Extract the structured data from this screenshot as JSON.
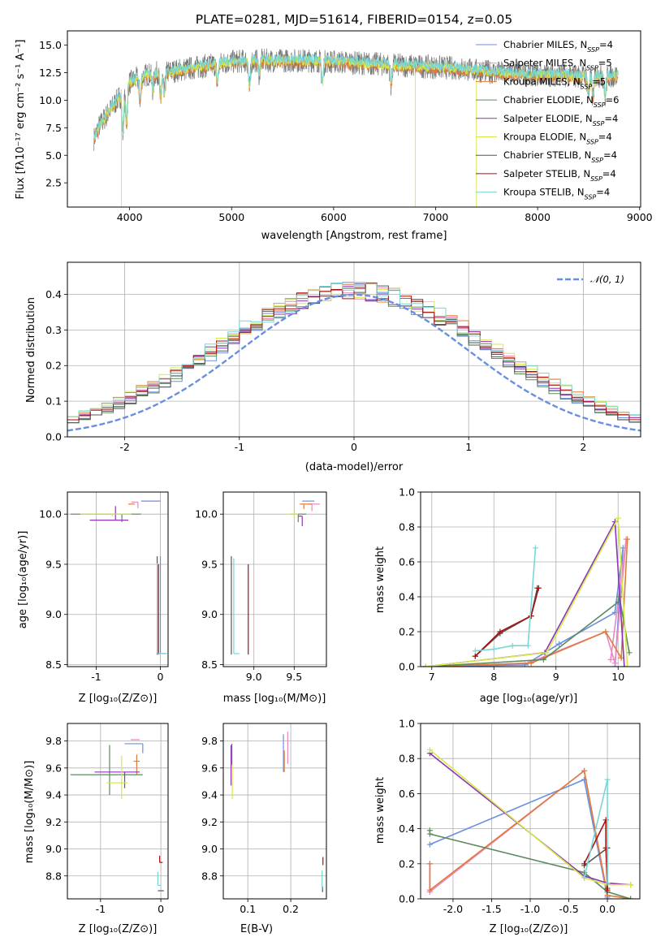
{
  "title": "PLATE=0281, MJD=51614, FIBERID=0154, z=0.05",
  "colors": [
    "#6a8fe0",
    "#e889c0",
    "#e07b39",
    "#5c8a5c",
    "#8e35b5",
    "#d6e84a",
    "#555555",
    "#aa1111",
    "#78d6d6"
  ],
  "legend": {
    "spectrum": [
      {
        "name": "Chabrier MILES",
        "n": "4"
      },
      {
        "name": "Salpeter MILES",
        "n": "5"
      },
      {
        "name": "Kroupa MILES",
        "n": "5"
      },
      {
        "name": "Chabrier ELODIE",
        "n": "6"
      },
      {
        "name": "Salpeter ELODIE",
        "n": "4"
      },
      {
        "name": "Kroupa ELODIE",
        "n": "4"
      },
      {
        "name": "Chabrier STELIB",
        "n": "4"
      },
      {
        "name": "Salpeter STELIB",
        "n": "4"
      },
      {
        "name": "Kroupa STELIB",
        "n": "4"
      }
    ],
    "normal": "𝒩(0, 1)"
  },
  "chart_data": [
    {
      "type": "line",
      "id": "spectrum",
      "xlabel": "wavelength [Angstrom, rest frame]",
      "ylabel": "Flux [fλ10⁻¹⁷ erg cm⁻² s⁻¹ A⁻¹]",
      "xlim": [
        3390,
        9010
      ],
      "ylim": [
        0.3,
        16.3
      ],
      "xticks": [
        4000,
        5000,
        6000,
        7000,
        8000,
        9000
      ],
      "yticks": [
        2.5,
        5.0,
        7.5,
        10.0,
        12.5,
        15.0
      ],
      "continuum": {
        "x": [
          3650,
          3700,
          3800,
          3900,
          3950,
          4000,
          4100,
          4200,
          4300,
          4400,
          4600,
          4800,
          5000,
          5200,
          5400,
          5600,
          5800,
          6000,
          6200,
          6400,
          6600,
          6800,
          7000,
          7200,
          7400,
          7600,
          7800,
          8000,
          8200,
          8400,
          8600,
          8800
        ],
        "y": [
          6.5,
          7.6,
          9.0,
          10.3,
          11.2,
          11.6,
          12.1,
          12.4,
          12.5,
          12.6,
          12.9,
          13.2,
          13.5,
          13.6,
          13.6,
          13.6,
          13.6,
          13.5,
          13.4,
          13.3,
          13.2,
          13.1,
          13.0,
          12.9,
          12.7,
          12.5,
          12.4,
          12.3,
          12.3,
          12.2,
          12.2,
          12.2
        ]
      },
      "absorption_lines": [
        {
          "x": 3934,
          "depth": 4.0
        },
        {
          "x": 3969,
          "depth": 3.5
        },
        {
          "x": 4102,
          "depth": 2.0
        },
        {
          "x": 4227,
          "depth": 1.5
        },
        {
          "x": 4304,
          "depth": 2.5
        },
        {
          "x": 4340,
          "depth": 2.0
        },
        {
          "x": 4861,
          "depth": 1.8
        },
        {
          "x": 5175,
          "depth": 2.5
        },
        {
          "x": 5270,
          "depth": 1.2
        },
        {
          "x": 5890,
          "depth": 2.0
        },
        {
          "x": 6563,
          "depth": 1.8
        },
        {
          "x": 8498,
          "depth": 1.8
        },
        {
          "x": 8542,
          "depth": 2.0
        },
        {
          "x": 8662,
          "depth": 1.9
        }
      ]
    },
    {
      "type": "step",
      "id": "residuals",
      "xlabel": "(data-model)/error",
      "ylabel": "Normed distribution",
      "xlim": [
        -2.5,
        2.5
      ],
      "ylim": [
        0,
        0.49
      ],
      "xticks": [
        -2,
        -1,
        0,
        1,
        2
      ],
      "yticks": [
        0.0,
        0.1,
        0.2,
        0.3,
        0.4
      ],
      "bin_width": 0.1,
      "normal": {
        "mu": 0,
        "sigma": 1
      }
    },
    {
      "type": "scatter",
      "id": "age_vs_Z",
      "xlabel": "Z [log₁₀(Z/Z⊙)]",
      "ylabel": "age  [log₁₀(age/yr)]",
      "xlim": [
        -1.45,
        0.12
      ],
      "ylim": [
        8.48,
        10.22
      ],
      "xticks": [
        -1,
        0
      ],
      "yticks": [
        8.5,
        9.0,
        9.5,
        10.0
      ],
      "points": [
        {
          "s": 0,
          "x": -0.3,
          "xe": [
            -0.3,
            0.0
          ],
          "y": 10.13,
          "ye": [
            0.0,
            0.0
          ]
        },
        {
          "s": 0,
          "x": -0.0,
          "xe": [
            0.0,
            0.1
          ],
          "y": 8.61,
          "ye": [
            0.0,
            0.97
          ]
        },
        {
          "s": 1,
          "x": -0.35,
          "xe": [
            0.1,
            0.0
          ],
          "y": 10.12,
          "ye": [
            0.06,
            0.0
          ]
        },
        {
          "s": 2,
          "x": -0.4,
          "xe": [
            0.1,
            0.0
          ],
          "y": 10.1,
          "ye": [
            0.0,
            0.0
          ]
        },
        {
          "s": 3,
          "x": -0.6,
          "xe": [
            0.8,
            0.3
          ],
          "y": 10.0,
          "ye": [
            0.08,
            0.0
          ]
        },
        {
          "s": 4,
          "x": -0.7,
          "xe": [
            0.4,
            0.2
          ],
          "y": 9.94,
          "ye": [
            0.0,
            0.14
          ]
        },
        {
          "s": 5,
          "x": -0.75,
          "xe": [
            0.5,
            0.3
          ],
          "y": 10.0,
          "ye": [
            0.02,
            0.0
          ]
        },
        {
          "s": 6,
          "x": -0.05,
          "xe": [
            0.0,
            0.0
          ],
          "y": 8.6,
          "ye": [
            0.0,
            0.98
          ]
        },
        {
          "s": 7,
          "x": -0.03,
          "xe": [
            0.0,
            0.0
          ],
          "y": 8.6,
          "ye": [
            0.0,
            0.9
          ]
        },
        {
          "s": 8,
          "x": -0.05,
          "xe": [
            0.0,
            0.15
          ],
          "y": 8.61,
          "ye": [
            0.0,
            0.9
          ]
        }
      ]
    },
    {
      "type": "scatter",
      "id": "age_vs_mass",
      "xlabel": "mass [log₁₀(M/M⊙)]",
      "ylabel": "",
      "xlim": [
        8.62,
        9.9
      ],
      "ylim": [
        8.48,
        10.22
      ],
      "xticks": [
        9.0,
        9.5
      ],
      "yticks": [
        8.5,
        9.0,
        9.5,
        10.0
      ],
      "points": [
        {
          "s": 0,
          "x": 9.65,
          "xe": [
            0.05,
            0.1
          ],
          "y": 10.13,
          "ye": [
            0.0,
            0.0
          ]
        },
        {
          "s": 1,
          "x": 9.72,
          "xe": [
            0.05,
            0.1
          ],
          "y": 10.1,
          "ye": [
            0.07,
            0.0
          ]
        },
        {
          "s": 2,
          "x": 9.62,
          "xe": [
            0.05,
            0.1
          ],
          "y": 10.1,
          "ye": [
            0.05,
            0.0
          ]
        },
        {
          "s": 3,
          "x": 9.55,
          "xe": [
            0.1,
            0.1
          ],
          "y": 10.0,
          "ye": [
            0.08,
            0.0
          ]
        },
        {
          "s": 4,
          "x": 9.6,
          "xe": [
            0.05,
            0.0
          ],
          "y": 9.98,
          "ye": [
            0.1,
            0.0
          ]
        },
        {
          "s": 5,
          "x": 9.5,
          "xe": [
            0.1,
            0.05
          ],
          "y": 10.0,
          "ye": [
            0.03,
            0.0
          ]
        },
        {
          "s": 6,
          "x": 8.72,
          "xe": [
            0.0,
            0.0
          ],
          "y": 8.6,
          "ye": [
            0.0,
            0.98
          ]
        },
        {
          "s": 7,
          "x": 8.93,
          "xe": [
            0.0,
            0.0
          ],
          "y": 8.6,
          "ye": [
            0.0,
            0.9
          ]
        },
        {
          "s": 8,
          "x": 8.75,
          "xe": [
            0.0,
            0.07
          ],
          "y": 8.61,
          "ye": [
            0.0,
            0.95
          ]
        }
      ]
    },
    {
      "type": "line",
      "id": "massweight_vs_age",
      "xlabel": "age  [log₁₀(age/yr)]",
      "ylabel": "mass weight",
      "xlim": [
        6.82,
        10.35
      ],
      "ylim": [
        0.0,
        1.0
      ],
      "xticks": [
        7,
        8,
        9,
        10
      ],
      "yticks": [
        0.0,
        0.2,
        0.4,
        0.6,
        0.8,
        1.0
      ],
      "series": [
        {
          "s": 0,
          "x": [
            6.9,
            8.5,
            9.05,
            9.95,
            10.08,
            9.95
          ],
          "y": [
            0.0,
            0.01,
            0.13,
            0.31,
            0.68,
            0.0
          ]
        },
        {
          "s": 1,
          "x": [
            6.9,
            8.55,
            9.8,
            9.95,
            10.13,
            9.88
          ],
          "y": [
            0.0,
            0.02,
            0.2,
            0.02,
            0.73,
            0.04
          ]
        },
        {
          "s": 2,
          "x": [
            6.9,
            8.6,
            9.8,
            10.05,
            10.15
          ],
          "y": [
            0.0,
            0.02,
            0.2,
            0.05,
            0.73
          ]
        },
        {
          "s": 3,
          "x": [
            6.9,
            8.8,
            10.0,
            10.02,
            10.18
          ],
          "y": [
            0.0,
            0.04,
            0.37,
            0.4,
            0.08
          ]
        },
        {
          "s": 4,
          "x": [
            6.9,
            8.82,
            9.95,
            10.1
          ],
          "y": [
            0.0,
            0.08,
            0.83,
            0.0
          ]
        },
        {
          "s": 5,
          "x": [
            6.9,
            8.85,
            10.0,
            10.15
          ],
          "y": [
            0.0,
            0.08,
            0.85,
            0.0
          ]
        },
        {
          "s": 6,
          "x": [
            7.7,
            8.1,
            8.6,
            8.7
          ],
          "y": [
            0.06,
            0.19,
            0.29,
            0.45
          ]
        },
        {
          "s": 7,
          "x": [
            7.7,
            8.1,
            8.6,
            8.72
          ],
          "y": [
            0.06,
            0.2,
            0.29,
            0.45
          ]
        },
        {
          "s": 8,
          "x": [
            7.7,
            8.0,
            8.3,
            8.55,
            8.67
          ],
          "y": [
            0.09,
            0.1,
            0.12,
            0.12,
            0.68
          ]
        }
      ]
    },
    {
      "type": "scatter",
      "id": "mass_vs_Z",
      "xlabel": "Z [log₁₀(Z/Z⊙)]",
      "ylabel": "mass [log₁₀(M/M⊙)]",
      "xlim": [
        -1.55,
        0.12
      ],
      "ylim": [
        8.63,
        9.93
      ],
      "xticks": [
        -1,
        0
      ],
      "yticks": [
        8.8,
        9.0,
        9.2,
        9.4,
        9.6,
        9.8
      ],
      "points": [
        {
          "s": 0,
          "x": -0.3,
          "xe": [
            0.3,
            0.0
          ],
          "y": 9.78,
          "ye": [
            0.07,
            0.0
          ]
        },
        {
          "s": 1,
          "x": -0.35,
          "xe": [
            0.15,
            0.0
          ],
          "y": 9.81,
          "ye": [
            0.0,
            0.0
          ]
        },
        {
          "s": 2,
          "x": -0.4,
          "xe": [
            0.05,
            0.05
          ],
          "y": 9.65,
          "ye": [
            0.1,
            0.05
          ]
        },
        {
          "s": 3,
          "x": -0.85,
          "xe": [
            0.65,
            0.55
          ],
          "y": 9.55,
          "ye": [
            0.15,
            0.22
          ]
        },
        {
          "s": 4,
          "x": -0.6,
          "xe": [
            0.5,
            0.25
          ],
          "y": 9.57,
          "ye": [
            0.12,
            0.0
          ]
        },
        {
          "s": 5,
          "x": -0.65,
          "xe": [
            0.25,
            0.1
          ],
          "y": 9.49,
          "ye": [
            0.12,
            0.2
          ]
        },
        {
          "s": 6,
          "x": -0.05,
          "xe": [
            0.0,
            0.1
          ],
          "y": 8.69,
          "ye": [
            0.0,
            0.0
          ]
        },
        {
          "s": 7,
          "x": -0.02,
          "xe": [
            0.0,
            0.05
          ],
          "y": 8.9,
          "ye": [
            0.0,
            0.05
          ]
        },
        {
          "s": 8,
          "x": -0.05,
          "xe": [
            0.0,
            0.05
          ],
          "y": 8.73,
          "ye": [
            0.0,
            0.1
          ]
        }
      ]
    },
    {
      "type": "scatter",
      "id": "mass_vs_ebv",
      "xlabel": "E(B-V)",
      "ylabel": "",
      "xlim": [
        0.043,
        0.283
      ],
      "ylim": [
        8.63,
        9.93
      ],
      "xticks": [
        0.1,
        0.2
      ],
      "yticks": [
        8.8,
        9.0,
        9.2,
        9.4,
        9.6,
        9.8
      ],
      "points": [
        {
          "s": 0,
          "x": 0.183,
          "y": 9.71,
          "ye": [
            0.14,
            0.14
          ]
        },
        {
          "s": 1,
          "x": 0.193,
          "y": 9.75,
          "ye": [
            0.12,
            0.12
          ]
        },
        {
          "s": 2,
          "x": 0.185,
          "y": 9.65,
          "ye": [
            0.08,
            0.08
          ]
        },
        {
          "s": 3,
          "x": 0.063,
          "y": 9.7,
          "ye": [
            0.08,
            0.08
          ]
        },
        {
          "s": 4,
          "x": 0.061,
          "y": 9.62,
          "ye": [
            0.15,
            0.15
          ]
        },
        {
          "s": 5,
          "x": 0.064,
          "y": 9.5,
          "ye": [
            0.13,
            0.13
          ]
        },
        {
          "s": 6,
          "x": 0.274,
          "y": 8.7,
          "ye": [
            0.02,
            0.02
          ]
        },
        {
          "s": 7,
          "x": 0.275,
          "y": 8.91,
          "ye": [
            0.03,
            0.03
          ]
        },
        {
          "s": 8,
          "x": 0.273,
          "y": 8.77,
          "ye": [
            0.07,
            0.07
          ]
        }
      ]
    },
    {
      "type": "line",
      "id": "massweight_vs_Z",
      "xlabel": "Z [log₁₀(Z/Z⊙)]",
      "ylabel": "mass weight",
      "xlim": [
        -2.42,
        0.42
      ],
      "ylim": [
        0.0,
        1.0
      ],
      "xticks": [
        -2.0,
        -1.5,
        -1.0,
        -0.5,
        0.0
      ],
      "yticks": [
        0.0,
        0.2,
        0.4,
        0.6,
        0.8,
        1.0
      ],
      "series": [
        {
          "s": 0,
          "x": [
            -2.3,
            -0.3,
            0.0,
            0.0
          ],
          "y": [
            0.31,
            0.68,
            0.01,
            0.0
          ]
        },
        {
          "s": 1,
          "x": [
            -2.3,
            -2.3,
            -0.3,
            0.0
          ],
          "y": [
            0.2,
            0.04,
            0.73,
            0.02
          ]
        },
        {
          "s": 2,
          "x": [
            -2.3,
            -2.3,
            -0.3,
            0.0,
            0.3
          ],
          "y": [
            0.2,
            0.05,
            0.73,
            0.02,
            0.0
          ]
        },
        {
          "s": 3,
          "x": [
            -2.3,
            -2.3,
            -0.3,
            0.0,
            0.3
          ],
          "y": [
            0.39,
            0.37,
            0.15,
            0.04,
            0.0
          ]
        },
        {
          "s": 4,
          "x": [
            -2.3,
            -0.3,
            0.0,
            0.3
          ],
          "y": [
            0.83,
            0.13,
            0.09,
            0.08
          ]
        },
        {
          "s": 5,
          "x": [
            -2.3,
            -0.3,
            0.0,
            0.3
          ],
          "y": [
            0.85,
            0.12,
            0.08,
            0.08
          ]
        },
        {
          "s": 6,
          "x": [
            -0.3,
            0.0,
            0.0
          ],
          "y": [
            0.19,
            0.29,
            0.06
          ]
        },
        {
          "s": 7,
          "x": [
            -0.3,
            -0.02,
            -0.02,
            0.0
          ],
          "y": [
            0.2,
            0.45,
            0.29,
            0.05
          ]
        },
        {
          "s": 8,
          "x": [
            -0.3,
            0.0,
            0.0
          ],
          "y": [
            0.12,
            0.68,
            0.09
          ]
        }
      ]
    }
  ]
}
